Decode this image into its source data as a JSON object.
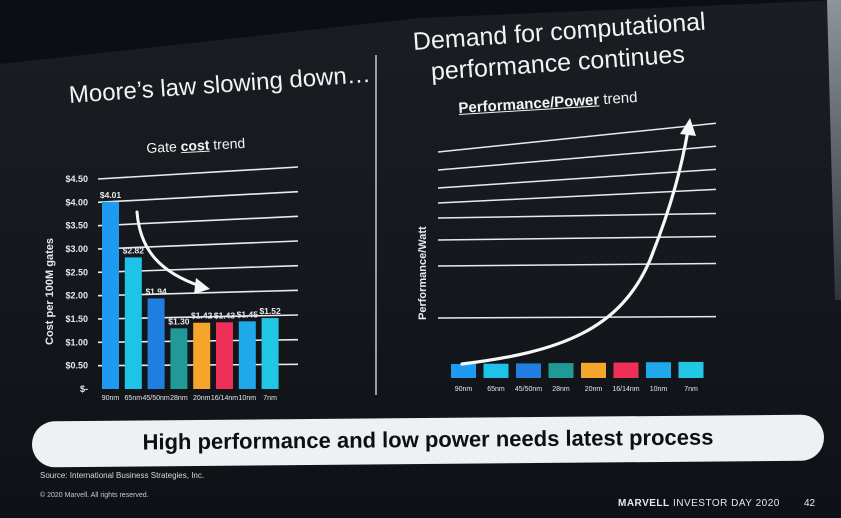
{
  "slide": {
    "left_heading": "Moore’s law slowing down…",
    "right_heading_line1": "Demand for computational",
    "right_heading_line2": "performance continues",
    "banner": "High performance and low power needs latest process",
    "source": "Source: International Business Strategies, Inc.",
    "copyright": "© 2020 Marvell. All rights reserved.",
    "footer_brand": "MARVELL",
    "footer_event": "INVESTOR DAY 2020",
    "page_number": "42"
  },
  "chart_data": [
    {
      "type": "bar",
      "title_prefix": "Gate ",
      "title_emph": "cost",
      "title_suffix": " trend",
      "ylabel": "Cost per 100M gates",
      "ylim": [
        0,
        4.5
      ],
      "yticks": [
        "$-",
        "$0.50",
        "$1.00",
        "$1.50",
        "$2.00",
        "$2.50",
        "$3.00",
        "$3.50",
        "$4.00",
        "$4.50"
      ],
      "categories": [
        "90nm",
        "65nm",
        "45/50nm",
        "28nm",
        "20nm",
        "16/14nm",
        "10nm",
        "7nm"
      ],
      "values": [
        4.01,
        2.82,
        1.94,
        1.3,
        1.42,
        1.43,
        1.45,
        1.52
      ],
      "data_labels": [
        "$4.01",
        "$2.82",
        "$1.94",
        "$1.30",
        "$1.42",
        "$1.43",
        "$1.45",
        "$1.52"
      ],
      "colors": [
        "#1e9bf0",
        "#1ec3e8",
        "#1f7ee0",
        "#1f9a96",
        "#f5a52a",
        "#ee2f57",
        "#1fa9ea",
        "#22c7e6"
      ],
      "grid": true,
      "annotation": "downward trend arrow"
    },
    {
      "type": "line",
      "title_prefix": "",
      "title_emph": "Performance/Power",
      "title_suffix": " trend",
      "ylabel": "Performance/Watt",
      "categories": [
        "90nm",
        "65nm",
        "45/50nm",
        "28nm",
        "20nm",
        "16/14nm",
        "10nm",
        "7nm"
      ],
      "colors": [
        "#1e9bf0",
        "#1ec3e8",
        "#1f7ee0",
        "#1f9a96",
        "#f5a52a",
        "#ee2f57",
        "#1fa9ea",
        "#22c7e6"
      ],
      "grid": true,
      "annotation": "exponential upward trend arrow"
    }
  ]
}
